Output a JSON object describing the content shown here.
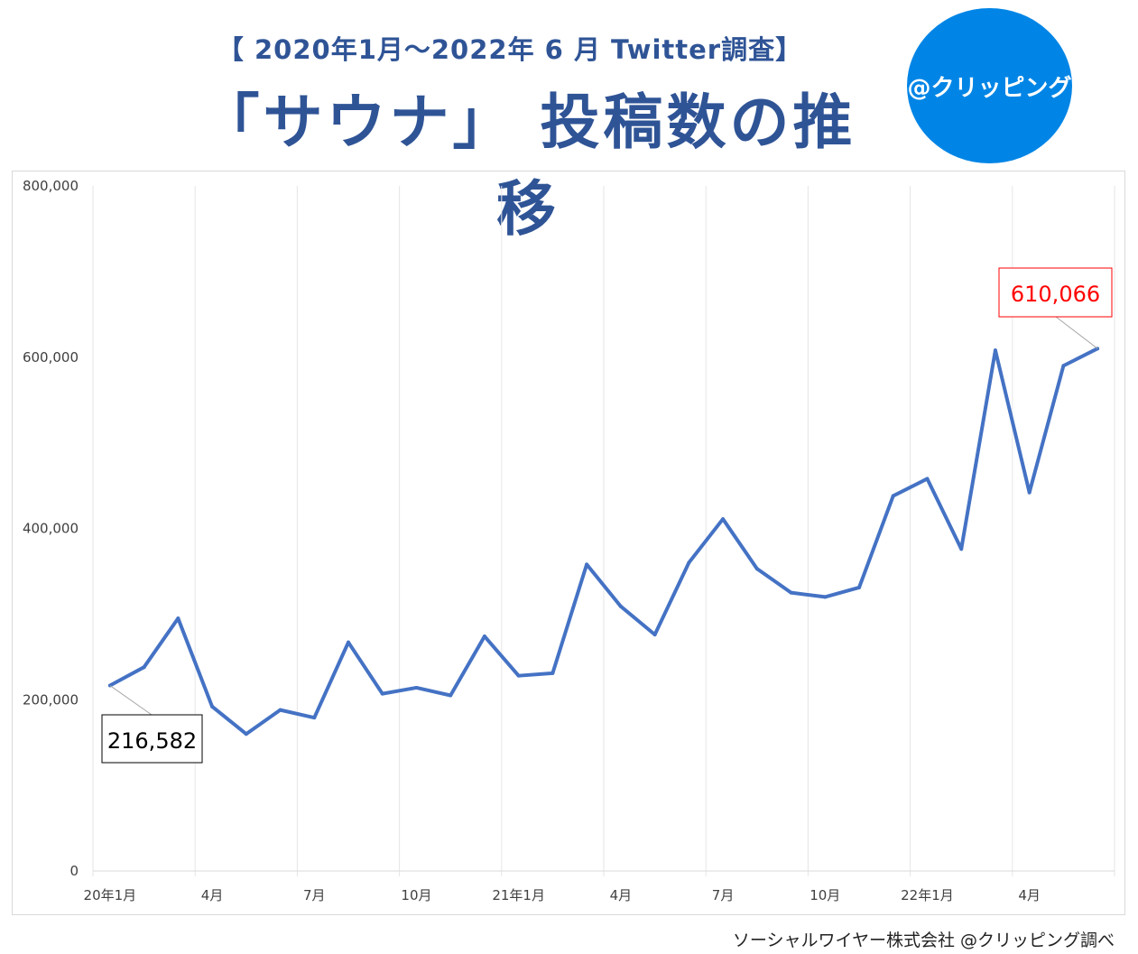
{
  "header": {
    "subtitle": "【 2020年1月～2022年 6 月 Twitter調査】",
    "title": "「サウナ」 投稿数の推移"
  },
  "logo": {
    "text": "@クリッピング",
    "color": "#0085e6"
  },
  "footer": "ソーシャルワイヤー株式会社 @クリッピング調べ",
  "chart_data": {
    "type": "line",
    "title": "",
    "xlabel": "",
    "ylabel": "",
    "ylim": [
      0,
      800000
    ],
    "yticks": [
      "0",
      "200,000",
      "400,000",
      "600,000",
      "800,000"
    ],
    "ytick_values": [
      0,
      200000,
      400000,
      600000,
      800000
    ],
    "x_tick_labels": [
      "20年1月",
      "4月",
      "7月",
      "10月",
      "21年1月",
      "4月",
      "7月",
      "10月",
      "22年1月",
      "4月"
    ],
    "x": [
      "2020-01",
      "2020-02",
      "2020-03",
      "2020-04",
      "2020-05",
      "2020-06",
      "2020-07",
      "2020-08",
      "2020-09",
      "2020-10",
      "2020-11",
      "2020-12",
      "2021-01",
      "2021-02",
      "2021-03",
      "2021-04",
      "2021-05",
      "2021-06",
      "2021-07",
      "2021-08",
      "2021-09",
      "2021-10",
      "2021-11",
      "2021-12",
      "2022-01",
      "2022-02",
      "2022-03",
      "2022-04",
      "2022-05",
      "2022-06"
    ],
    "series": [
      {
        "color": "#4472c4",
        "values": [
          216582,
          238000,
          295000,
          192000,
          160000,
          188000,
          179000,
          267000,
          207000,
          214000,
          205000,
          274000,
          228000,
          231000,
          358000,
          309000,
          276000,
          360000,
          411000,
          353000,
          325000,
          320000,
          331000,
          438000,
          458000,
          376000,
          608000,
          442000,
          590000,
          610066
        ]
      }
    ],
    "annotations": [
      {
        "index": 0,
        "label": "216,582",
        "color": "#000000"
      },
      {
        "index": 29,
        "label": "610,066",
        "color": "#ff0000"
      }
    ],
    "grid": "vertical"
  }
}
